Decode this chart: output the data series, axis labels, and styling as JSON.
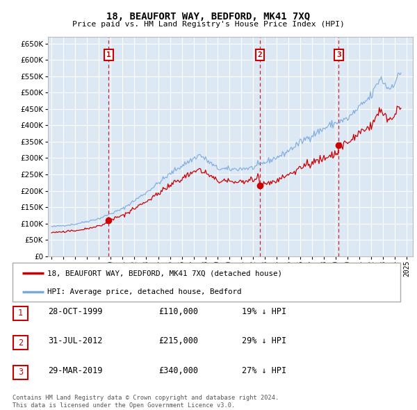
{
  "title": "18, BEAUFORT WAY, BEDFORD, MK41 7XQ",
  "subtitle": "Price paid vs. HM Land Registry's House Price Index (HPI)",
  "ylim": [
    0,
    670000
  ],
  "yticks": [
    0,
    50000,
    100000,
    150000,
    200000,
    250000,
    300000,
    350000,
    400000,
    450000,
    500000,
    550000,
    600000,
    650000
  ],
  "bg_color": "#dde8f5",
  "grid_color": "#ffffff",
  "sale_color": "#cc0000",
  "hpi_color": "#7aaadd",
  "vline_color": "#cc0000",
  "sale_points": [
    {
      "x": 1999.83,
      "price": 110000,
      "label": "1"
    },
    {
      "x": 2012.58,
      "price": 215000,
      "label": "2"
    },
    {
      "x": 2019.25,
      "price": 340000,
      "label": "3"
    }
  ],
  "legend_entries": [
    {
      "label": "18, BEAUFORT WAY, BEDFORD, MK41 7XQ (detached house)",
      "color": "#cc0000"
    },
    {
      "label": "HPI: Average price, detached house, Bedford",
      "color": "#7aaadd"
    }
  ],
  "table_rows": [
    {
      "num": "1",
      "date": "28-OCT-1999",
      "price": "£110,000",
      "pct": "19% ↓ HPI"
    },
    {
      "num": "2",
      "date": "31-JUL-2012",
      "price": "£215,000",
      "pct": "29% ↓ HPI"
    },
    {
      "num": "3",
      "date": "29-MAR-2019",
      "price": "£340,000",
      "pct": "27% ↓ HPI"
    }
  ],
  "footnote": "Contains HM Land Registry data © Crown copyright and database right 2024.\nThis data is licensed under the Open Government Licence v3.0."
}
